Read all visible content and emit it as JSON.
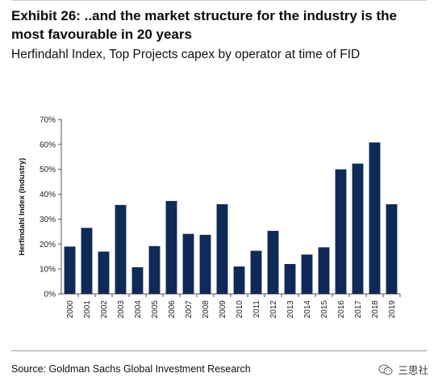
{
  "header": {
    "title": "Exhibit 26: ..and the market structure for the industry is the most favourable in 20 years",
    "subtitle": "Herfindahl Index, Top Projects capex by operator at time of FID"
  },
  "footer": {
    "source": "Source: Goldman Sachs Global Investment Research",
    "watermark_text": "三思社",
    "watermark_icon": "wechat-icon"
  },
  "colors": {
    "bar": "#0f2a57",
    "axis": "#555555"
  },
  "chart_data": {
    "type": "bar",
    "categories": [
      "2000",
      "2001",
      "2002",
      "2003",
      "2004",
      "2005",
      "2006",
      "2007",
      "2008",
      "2009",
      "2010",
      "2011",
      "2012",
      "2013",
      "2014",
      "2015",
      "2016",
      "2017",
      "2018",
      "2019"
    ],
    "values": [
      0.19,
      0.265,
      0.17,
      0.357,
      0.107,
      0.192,
      0.373,
      0.241,
      0.237,
      0.36,
      0.11,
      0.173,
      0.253,
      0.12,
      0.158,
      0.187,
      0.5,
      0.523,
      0.608,
      0.36
    ],
    "ylabel": "Herfindahl Index (Industry)",
    "ylim": [
      0,
      0.7
    ],
    "yticks": [
      0,
      0.1,
      0.2,
      0.3,
      0.4,
      0.5,
      0.6,
      0.7
    ],
    "ytick_labels": [
      "0%",
      "10%",
      "20%",
      "30%",
      "40%",
      "50%",
      "60%",
      "70%"
    ],
    "grid": false,
    "legend": "none"
  }
}
